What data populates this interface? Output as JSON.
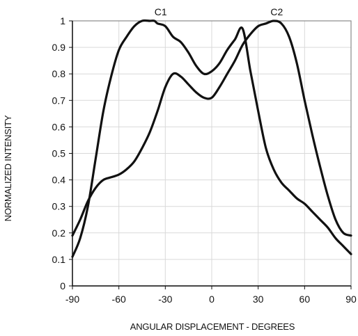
{
  "chart_data": {
    "type": "line",
    "title": "",
    "xlabel": "ANGULAR DISPLACEMENT - DEGREES",
    "ylabel": "NORMALIZED INTENSITY",
    "xlim": [
      -90,
      90
    ],
    "ylim": [
      0,
      1
    ],
    "x_ticks": [
      -90,
      -60,
      -30,
      0,
      30,
      60,
      90
    ],
    "x_tick_labels": [
      "-90",
      "-60",
      "-30",
      "0",
      "30",
      "60",
      "90"
    ],
    "y_ticks": [
      0,
      0.1,
      0.2,
      0.3,
      0.4,
      0.5,
      0.6,
      0.7,
      0.8,
      0.9,
      1
    ],
    "y_tick_labels": [
      "0",
      "0.1",
      "0.2",
      "0.3",
      "0.4",
      "0.5",
      "0.6",
      "0.7",
      "0.8",
      "0.9",
      "1"
    ],
    "grid": true,
    "legend": "none",
    "annotations": [
      {
        "text": "C1",
        "x": -33,
        "y": 1
      },
      {
        "text": "C2",
        "x": 42,
        "y": 1
      }
    ],
    "series": [
      {
        "x": [
          -90,
          -85,
          -80,
          -75,
          -70,
          -65,
          -60,
          -55,
          -50,
          -45,
          -40,
          -37,
          -35,
          -30,
          -25,
          -20,
          -15,
          -10,
          -5,
          0,
          5,
          10,
          15,
          20,
          25,
          30,
          35,
          40,
          45,
          50,
          55,
          60,
          65,
          70,
          75,
          80,
          85,
          90
        ],
        "y": [
          0.11,
          0.18,
          0.3,
          0.48,
          0.66,
          0.79,
          0.89,
          0.94,
          0.98,
          1.0,
          1.0,
          1.0,
          0.99,
          0.98,
          0.94,
          0.92,
          0.88,
          0.83,
          0.8,
          0.81,
          0.84,
          0.89,
          0.93,
          0.97,
          0.81,
          0.66,
          0.52,
          0.44,
          0.39,
          0.36,
          0.33,
          0.31,
          0.28,
          0.25,
          0.22,
          0.18,
          0.15,
          0.12
        ],
        "color": "#111111"
      },
      {
        "x": [
          -90,
          -85,
          -80,
          -75,
          -70,
          -65,
          -60,
          -55,
          -50,
          -45,
          -40,
          -35,
          -30,
          -25,
          -20,
          -15,
          -10,
          -5,
          0,
          5,
          10,
          15,
          20,
          25,
          30,
          35,
          40,
          45,
          50,
          55,
          60,
          65,
          70,
          75,
          80,
          85,
          90
        ],
        "y": [
          0.19,
          0.25,
          0.32,
          0.37,
          0.4,
          0.41,
          0.42,
          0.44,
          0.47,
          0.52,
          0.58,
          0.66,
          0.75,
          0.8,
          0.79,
          0.76,
          0.73,
          0.71,
          0.71,
          0.75,
          0.8,
          0.85,
          0.91,
          0.95,
          0.98,
          0.99,
          1.0,
          0.99,
          0.94,
          0.84,
          0.7,
          0.57,
          0.45,
          0.34,
          0.25,
          0.2,
          0.19
        ],
        "color": "#111111"
      }
    ]
  }
}
